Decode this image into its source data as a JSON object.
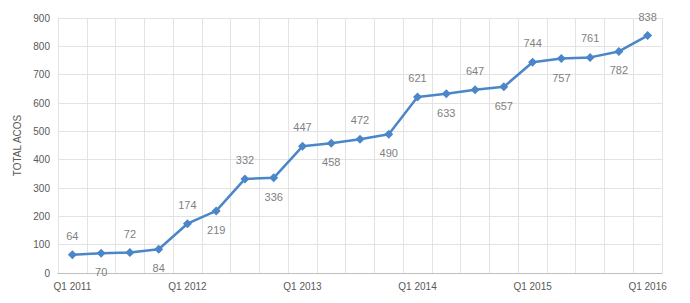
{
  "chart_data": {
    "type": "line",
    "y_label": "TOTAL ACOS",
    "categories": [
      "Q1 2011",
      null,
      null,
      null,
      "Q1 2012",
      null,
      null,
      null,
      "Q1 2013",
      null,
      null,
      null,
      "Q1 2014",
      null,
      null,
      null,
      "Q1 2015",
      null,
      null,
      null,
      "Q1 2016"
    ],
    "values": [
      64,
      70,
      72,
      84,
      174,
      219,
      332,
      336,
      447,
      458,
      472,
      490,
      621,
      633,
      647,
      657,
      744,
      757,
      761,
      782,
      838
    ],
    "color": "#4a86c8",
    "marker": "diamond",
    "ylim": [
      0,
      900
    ],
    "yticks": [
      0,
      100,
      200,
      300,
      400,
      500,
      600,
      700,
      800,
      900
    ],
    "grid": true,
    "data_labels": true
  }
}
